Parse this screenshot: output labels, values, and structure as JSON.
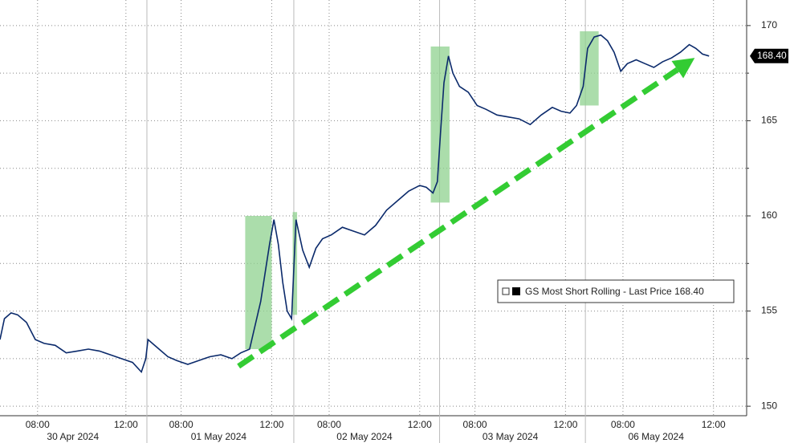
{
  "chart_data": {
    "type": "line",
    "series": [
      {
        "name": "GS Most Short Rolling - Last Price 168.40",
        "color": "#0b2a6b",
        "x": [
          0,
          0.2,
          0.5,
          0.8,
          1.2,
          1.6,
          2.0,
          2.5,
          3.0,
          3.5,
          4.0,
          4.5,
          5.0,
          5.5,
          6.0,
          6.4,
          6.6,
          6.7,
          7.2,
          7.6,
          8.0,
          8.5,
          9.0,
          9.5,
          10.0,
          10.5,
          10.9,
          11.3,
          11.5,
          11.8,
          12.0,
          12.2,
          12.4,
          12.6,
          12.8,
          13.0,
          13.2,
          13.4,
          13.7,
          14.0,
          14.3,
          14.6,
          15.0,
          15.5,
          16.0,
          16.5,
          17.0,
          17.5,
          18.0,
          18.5,
          19.0,
          19.3,
          19.6,
          19.8,
          19.95,
          20.1,
          20.3,
          20.5,
          20.8,
          21.2,
          21.6,
          22.0,
          22.5,
          23.0,
          23.5,
          24.0,
          24.5,
          25.0,
          25.4,
          25.8,
          26.1,
          26.4,
          26.6,
          26.9,
          27.2,
          27.5,
          27.8,
          28.1,
          28.4,
          28.8,
          29.2,
          29.6,
          30.0,
          30.4,
          30.8,
          31.2,
          31.5,
          31.8,
          32.1
        ],
        "values": [
          153.5,
          154.6,
          154.9,
          154.8,
          154.4,
          153.5,
          153.3,
          153.2,
          152.8,
          152.9,
          153.0,
          152.9,
          152.7,
          152.5,
          152.3,
          151.8,
          152.5,
          153.5,
          153.0,
          152.6,
          152.4,
          152.2,
          152.4,
          152.6,
          152.7,
          152.5,
          152.8,
          153.0,
          154.0,
          155.5,
          157.0,
          158.5,
          159.8,
          158.5,
          156.5,
          155.0,
          154.6,
          159.8,
          158.2,
          157.3,
          158.3,
          158.8,
          159.0,
          159.4,
          159.2,
          159.0,
          159.5,
          160.3,
          160.8,
          161.3,
          161.6,
          161.5,
          161.2,
          161.8,
          164.5,
          167.0,
          168.4,
          167.5,
          166.8,
          166.5,
          165.8,
          165.6,
          165.3,
          165.2,
          165.1,
          164.8,
          165.3,
          165.7,
          165.5,
          165.4,
          165.8,
          166.8,
          168.8,
          169.4,
          169.5,
          169.2,
          168.6,
          167.6,
          168.0,
          168.2,
          168.0,
          167.8,
          168.1,
          168.3,
          168.6,
          169.0,
          168.8,
          168.5,
          168.4
        ]
      }
    ],
    "last_value": {
      "value": 168.4,
      "label": "168.40"
    },
    "xlim": [
      0,
      33.8
    ],
    "xticks": [
      {
        "value": 1.7,
        "label": "08:00"
      },
      {
        "value": 5.7,
        "label": "12:00"
      },
      {
        "value": 8.2,
        "label": "08:00"
      },
      {
        "value": 12.3,
        "label": "12:00"
      },
      {
        "value": 14.9,
        "label": "08:00"
      },
      {
        "value": 19.0,
        "label": "12:00"
      },
      {
        "value": 21.5,
        "label": "08:00"
      },
      {
        "value": 25.6,
        "label": "12:00"
      },
      {
        "value": 28.2,
        "label": "08:00"
      },
      {
        "value": 32.3,
        "label": "12:00"
      }
    ],
    "dates": [
      {
        "value": 3.3,
        "label": "30 Apr 2024"
      },
      {
        "value": 9.9,
        "label": "01 May 2024"
      },
      {
        "value": 16.5,
        "label": "02 May 2024"
      },
      {
        "value": 23.1,
        "label": "03 May 2024"
      },
      {
        "value": 29.7,
        "label": "06 May 2024"
      }
    ],
    "day_breaks": [
      6.65,
      13.3,
      19.9,
      26.5
    ],
    "ylim": [
      149.5,
      170.5
    ],
    "yticks": [
      150,
      155,
      160,
      165,
      170
    ],
    "yminor": [
      152.5,
      157.5,
      162.5,
      167.5
    ],
    "highlights": [
      {
        "x": [
          11.1,
          12.3
        ],
        "y": [
          153.0,
          160.0
        ]
      },
      {
        "x": [
          13.25,
          13.45
        ],
        "y": [
          154.8,
          160.2
        ]
      },
      {
        "x": [
          19.5,
          20.35
        ],
        "y": [
          160.7,
          168.9
        ]
      },
      {
        "x": [
          26.25,
          27.1
        ],
        "y": [
          165.8,
          169.7
        ]
      }
    ],
    "highlight_color": "#8fd18f",
    "arrow": {
      "from": [
        10.8,
        152.1
      ],
      "to": [
        31.45,
        168.3
      ],
      "color": "#33cc33"
    },
    "grid": true
  }
}
